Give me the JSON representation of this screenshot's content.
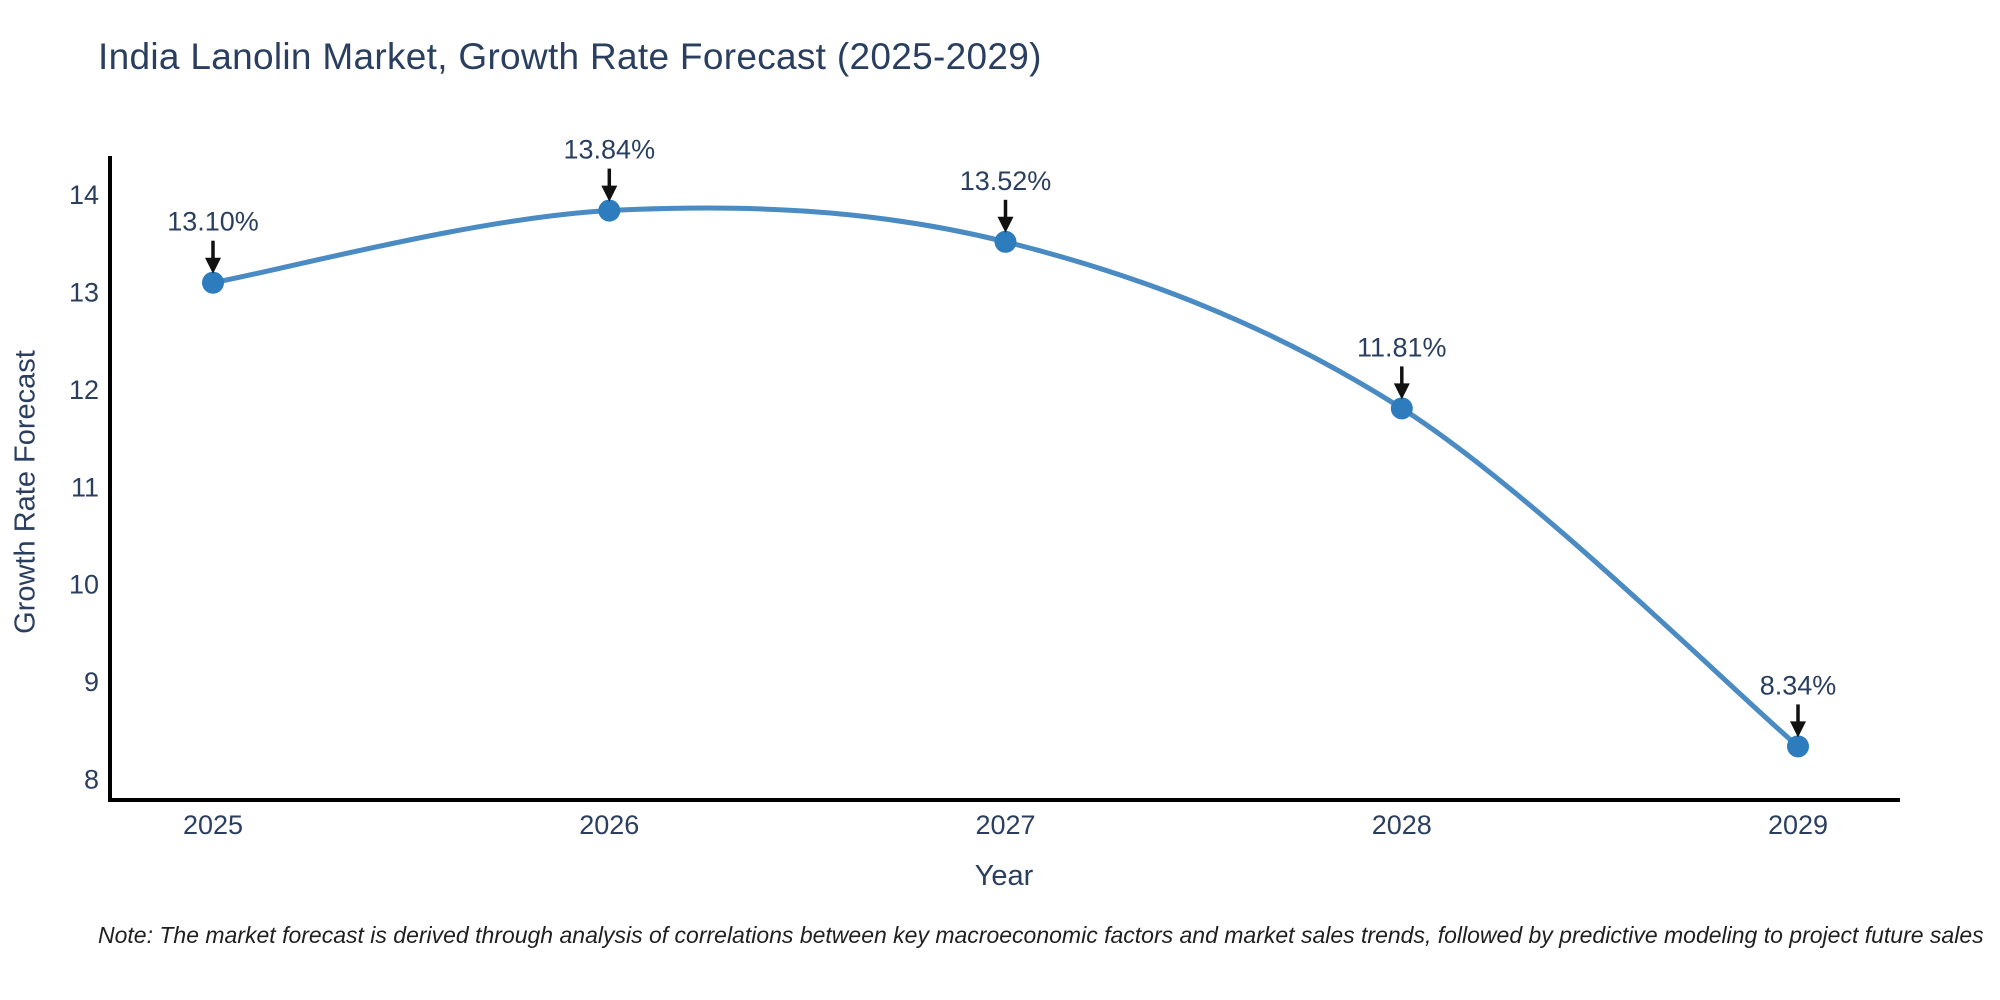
{
  "title": "India Lanolin Market, Growth Rate Forecast (2025-2029)",
  "note": "Note: The market forecast is derived through analysis of correlations between key macroeconomic factors and market sales trends, followed by predictive modeling to project future sales",
  "chart_data": {
    "type": "line",
    "title": "India Lanolin Market, Growth Rate Forecast (2025-2029)",
    "xlabel": "Year",
    "ylabel": "Growth Rate Forecast",
    "x": [
      2025,
      2026,
      2027,
      2028,
      2029
    ],
    "xticks": [
      "2025",
      "2026",
      "2027",
      "2028",
      "2029"
    ],
    "series": [
      {
        "name": "Growth Rate Forecast",
        "values": [
          13.1,
          13.84,
          13.52,
          11.81,
          8.34
        ],
        "point_labels": [
          "13.10%",
          "13.84%",
          "13.52%",
          "11.81%",
          "8.34%"
        ]
      }
    ],
    "yticks": [
      8,
      9,
      10,
      11,
      12,
      13,
      14
    ],
    "ylim": [
      7.79,
      14.38
    ],
    "grid": false,
    "legend": "none",
    "line_shape": "spline",
    "colors": {
      "line": "#4a8bc3",
      "marker": "#2d7cbd",
      "axis_line": "#000000",
      "text": "#2a3f5f",
      "arrow": "#111111"
    }
  }
}
